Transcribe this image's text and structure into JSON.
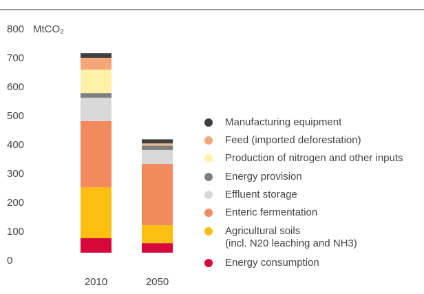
{
  "chart_data": {
    "type": "stacked_bar",
    "y_unit": "MtCO₂",
    "categories": [
      "2010",
      "2050"
    ],
    "ylim": [
      0,
      800
    ],
    "yticks": [
      0,
      100,
      200,
      300,
      400,
      500,
      600,
      700,
      800
    ],
    "series": [
      {
        "name": "Energy consumption",
        "color": "#d6083b",
        "values": [
          50,
          33
        ]
      },
      {
        "name": "Agricultural soils\n(incl. N20 leaching and NH3)",
        "color": "#fbbf10",
        "values": [
          176,
          62
        ]
      },
      {
        "name": "Enteric fermentation",
        "color": "#f28a5e",
        "values": [
          229,
          212
        ]
      },
      {
        "name": "Effluent storage",
        "color": "#d9d9d9",
        "values": [
          81,
          48
        ]
      },
      {
        "name": "Energy provision",
        "color": "#7f7f7f",
        "values": [
          16,
          16
        ]
      },
      {
        "name": "Production of nitrogen and other inputs",
        "color": "#fff2a8",
        "values": [
          81,
          2
        ]
      },
      {
        "name": "Feed (imported deforestation)",
        "color": "#f5a77a",
        "values": [
          41,
          5
        ]
      },
      {
        "name": "Manufacturing equipment",
        "color": "#404040",
        "values": [
          16,
          14
        ]
      }
    ]
  }
}
